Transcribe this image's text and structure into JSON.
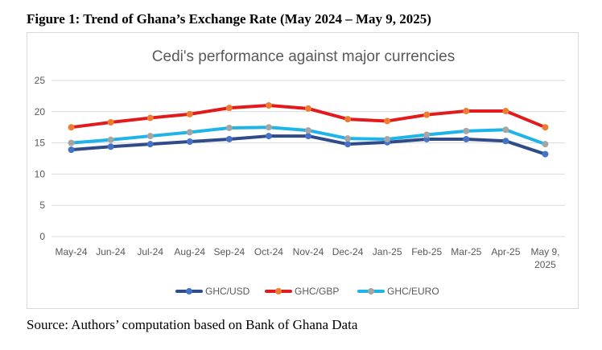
{
  "figure_title": "Figure 1: Trend of Ghana’s Exchange Rate (May 2024 – May 9, 2025)",
  "source_note": "Source: Authors’ computation based on Bank of Ghana Data",
  "chart_data": {
    "type": "line",
    "title": "Cedi's performance against major currencies",
    "xlabel": "",
    "ylabel": "",
    "ylim": [
      0,
      25
    ],
    "yticks": [
      0,
      5,
      10,
      15,
      20,
      25
    ],
    "grid": true,
    "legend_position": "bottom",
    "categories": [
      "May-24",
      "Jun-24",
      "Jul-24",
      "Aug-24",
      "Sep-24",
      "Oct-24",
      "Nov-24",
      "Dec-24",
      "Jan-25",
      "Feb-25",
      "Mar-25",
      "Apr-25",
      "May 9,\n2025"
    ],
    "series": [
      {
        "name": "GHC/USD",
        "line_color": "#2f4b8a",
        "marker_color": "#4472c4",
        "values": [
          13.9,
          14.4,
          14.8,
          15.2,
          15.6,
          16.1,
          16.1,
          14.8,
          15.1,
          15.6,
          15.6,
          15.3,
          13.2
        ]
      },
      {
        "name": "GHC/GBP",
        "line_color": "#e31a1c",
        "marker_color": "#ed7d31",
        "values": [
          17.5,
          18.3,
          19.0,
          19.6,
          20.6,
          21.0,
          20.5,
          18.8,
          18.5,
          19.5,
          20.1,
          20.1,
          17.5
        ]
      },
      {
        "name": "GHC/EURO",
        "line_color": "#1fb4e8",
        "marker_color": "#a5a5a5",
        "values": [
          15.0,
          15.5,
          16.1,
          16.7,
          17.4,
          17.5,
          17.0,
          15.7,
          15.6,
          16.3,
          16.9,
          17.1,
          14.8
        ]
      }
    ]
  }
}
